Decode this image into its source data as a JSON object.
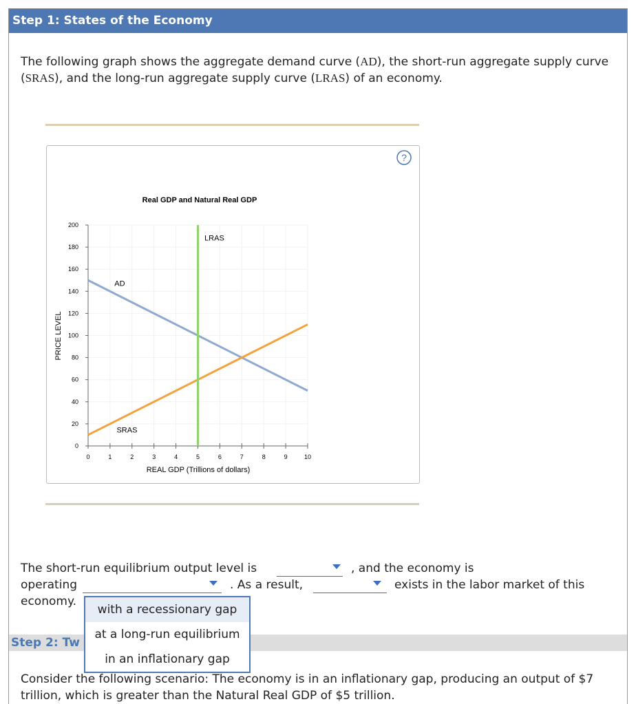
{
  "header": {
    "title": "Step 1: States of the Economy"
  },
  "intro": {
    "parts": [
      "The following graph shows the aggregate demand curve (",
      "AD",
      "), the short-run aggregate supply curve (",
      "SRAS",
      "), and the long-run aggregate supply curve (",
      "LRAS",
      ") of an economy."
    ]
  },
  "help_button": "?",
  "chart_data": {
    "type": "line",
    "title": "Real GDP and Natural Real GDP",
    "x_label": "REAL GDP (Trillions of dollars)",
    "y_label": "PRICE LEVEL",
    "xlim": [
      0,
      10
    ],
    "ylim": [
      0,
      200
    ],
    "xticks": [
      0,
      1,
      2,
      3,
      4,
      5,
      6,
      7,
      8,
      9,
      10
    ],
    "yticks": [
      0,
      20,
      40,
      60,
      80,
      100,
      120,
      140,
      160,
      180,
      200
    ],
    "grid": true,
    "series": [
      {
        "name": "AD",
        "color": "#8eaacf",
        "x": [
          0,
          10
        ],
        "values": [
          150,
          50
        ]
      },
      {
        "name": "SRAS",
        "color": "#f3a33c",
        "x": [
          0,
          10
        ],
        "values": [
          10,
          110
        ]
      },
      {
        "name": "LRAS",
        "color": "#8fd36a",
        "x": [
          5,
          5
        ],
        "values": [
          0,
          200
        ]
      }
    ]
  },
  "question": {
    "parts": [
      "The short-run equilibrium output level is",
      ", and the economy is",
      "operating",
      ". As a result,",
      "exists in the labor market of this",
      "economy."
    ]
  },
  "dropdown_options": [
    "with a recessionary gap",
    "at a long-run equilibrium",
    "in an inflationary gap"
  ],
  "step2": {
    "title": "Step 2: Tw",
    "text": "Consider the following scenario: The economy is in an inflationary gap, producing an output of $7 trillion, which is greater than the Natural Real GDP of $5 trillion."
  }
}
